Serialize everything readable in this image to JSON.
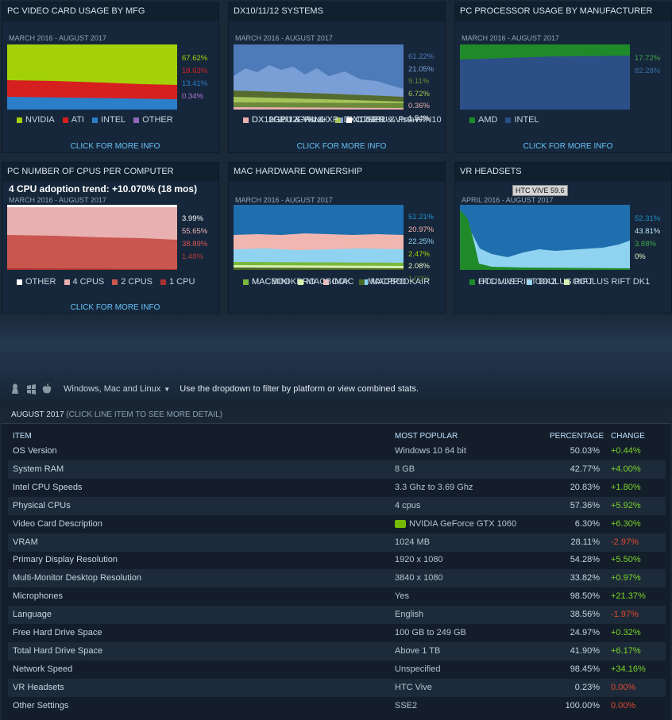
{
  "panels": [
    {
      "title": "PC VIDEO CARD USAGE BY MFG",
      "date": "MARCH 2016 - AUGUST 2017",
      "pcts": [
        {
          "v": "67.62%",
          "c": "#a4d007"
        },
        {
          "v": "18.63%",
          "c": "#d61f1f"
        },
        {
          "v": "13.41%",
          "c": "#2b7fc9"
        },
        {
          "v": "0.34%",
          "c": "#b07ad6"
        }
      ],
      "legend": [
        [
          {
            "l": "NVIDIA",
            "c": "#a4d007"
          },
          {
            "l": "ATI",
            "c": "#d61f1f"
          },
          {
            "l": "INTEL",
            "c": "#2b7fc9"
          },
          {
            "l": "OTHER",
            "c": "#8e6ab8"
          }
        ]
      ],
      "more": "CLICK FOR MORE INFO"
    },
    {
      "title": "DX10/11/12 SYSTEMS",
      "date": "MARCH 2016 - AUGUST 2017",
      "pcts": [
        {
          "v": "61.22%",
          "c": "#4d7ab8"
        },
        {
          "v": "21.05%",
          "c": "#7a9fd6"
        },
        {
          "v": "9.11%",
          "c": "#6b8a3a"
        },
        {
          "v": "6.72%",
          "c": "#a4c35a"
        },
        {
          "v": "0.36%",
          "c": "#e8b0b0"
        },
        {
          "v": "1.54%",
          "c": "#ffffff"
        }
      ],
      "legend": [
        [
          {
            "l": "DX12GPU & WIN10",
            "c": "#4d7ab8"
          },
          {
            "l": "DX12GPU & Pre-WIN10",
            "c": "#7a9fd6"
          }
        ],
        [
          {
            "l": "DX11GPU & Vista+",
            "c": "#556b2f"
          },
          {
            "l": "DX10GPU & Vista+",
            "c": "#a4c35a"
          }
        ],
        [
          {
            "l": "DX10/11/12GPU & XP",
            "c": "#e8b0b0"
          },
          {
            "l": "OTHER",
            "c": "#ffffff"
          }
        ]
      ],
      "more": "CLICK FOR MORE INFO"
    },
    {
      "title": "PC PROCESSOR USAGE BY MANUFACTURER",
      "date": "MARCH 2016 - AUGUST 2017",
      "pcts": [
        {
          "v": "17.72%",
          "c": "#3fa548"
        },
        {
          "v": "82.28%",
          "c": "#3d6ea8"
        }
      ],
      "legend": [
        [
          {
            "l": "AMD",
            "c": "#1f8a2a"
          },
          {
            "l": "INTEL",
            "c": "#2b4f86"
          }
        ]
      ],
      "more": "CLICK FOR MORE INFO"
    },
    {
      "title": "PC NUMBER OF CPUS PER COMPUTER",
      "date": "MARCH 2016 - AUGUST 2017",
      "trend": "4 CPU adoption trend: +10.070% (18 mos)",
      "pcts": [
        {
          "v": "3.99%",
          "c": "#ffffff"
        },
        {
          "v": "55.65%",
          "c": "#e8b0b0"
        },
        {
          "v": "38.89%",
          "c": "#d9534f"
        },
        {
          "v": "1.48%",
          "c": "#b83c3c"
        }
      ],
      "legend": [
        [
          {
            "l": "OTHER",
            "c": "#ffffff"
          },
          {
            "l": "4 CPUS",
            "c": "#e8b0b0"
          },
          {
            "l": "2 CPUS",
            "c": "#c9564f"
          },
          {
            "l": "1 CPU",
            "c": "#a83232"
          }
        ]
      ],
      "more": "CLICK FOR MORE INFO"
    },
    {
      "title": "MAC HARDWARE OWNERSHIP",
      "date": "MARCH 2016 - AUGUST 2017",
      "pcts": [
        {
          "v": "51.21%",
          "c": "#1f8dc9"
        },
        {
          "v": "20.97%",
          "c": "#f2b6b0"
        },
        {
          "v": "22.25%",
          "c": "#8fd3f0"
        },
        {
          "v": "2.47%",
          "c": "#a4d007"
        },
        {
          "v": "2.08%",
          "c": "#e9f5c8"
        },
        {
          "v": "1.03%",
          "c": "#4a7a24"
        }
      ],
      "legend": [
        [
          {
            "l": "MACBOOKPRO",
            "c": "#1f6fae"
          },
          {
            "l": "IMAC",
            "c": "#f2b6b0"
          },
          {
            "l": "MACBOOKAIR",
            "c": "#8fd3f0"
          }
        ],
        [
          {
            "l": "MACMINI",
            "c": "#7ab83a"
          },
          {
            "l": "MACBOOK",
            "c": "#d8f0b0"
          },
          {
            "l": "MACPRO",
            "c": "#4a6a24"
          }
        ]
      ],
      "more": ""
    },
    {
      "title": "VR HEADSETS",
      "date": "APRIL 2016 - AUGUST 2017",
      "tooltip": "HTC VIVE 59.6",
      "pcts": [
        {
          "v": "52.31%",
          "c": "#1f8dc9"
        },
        {
          "v": "43.81%",
          "c": "#bfe6f5"
        },
        {
          "v": "3.88%",
          "c": "#3fa548"
        },
        {
          "v": "0%",
          "c": "#e9f5c8"
        }
      ],
      "legend": [
        [
          {
            "l": "HTC VIVE",
            "c": "#1f6fae"
          },
          {
            "l": "OCULUS RIFT",
            "c": "#8fd3f0"
          }
        ],
        [
          {
            "l": "OCULUS RIFT DK2",
            "c": "#1f8a2a"
          },
          {
            "l": "OCULUS RIFT DK1",
            "c": "#d8f0b0"
          }
        ]
      ],
      "more": ""
    }
  ],
  "filter": {
    "platform": "Windows, Mac and Linux",
    "hint": "Use the dropdown to filter by platform or view combined stats.",
    "icons": [
      "linux-icon",
      "windows-icon",
      "apple-icon"
    ]
  },
  "table": {
    "month": "AUGUST 2017",
    "sub": "(CLICK LINE ITEM TO SEE MORE DETAIL)",
    "headers": {
      "item": "ITEM",
      "popular": "MOST POPULAR",
      "pct": "PERCENTAGE",
      "change": "CHANGE"
    },
    "rows": [
      {
        "item": "OS Version",
        "popular": "Windows 10 64 bit",
        "pct": "50.03%",
        "change": "+0.44%",
        "dir": "pos"
      },
      {
        "item": "System RAM",
        "popular": "8 GB",
        "pct": "42.77%",
        "change": "+4.00%",
        "dir": "pos"
      },
      {
        "item": "Intel CPU Speeds",
        "popular": "3.3 Ghz to 3.69 Ghz",
        "pct": "20.83%",
        "change": "+1.80%",
        "dir": "pos"
      },
      {
        "item": "Physical CPUs",
        "popular": "4 cpus",
        "pct": "57.36%",
        "change": "+5.92%",
        "dir": "pos"
      },
      {
        "item": "Video Card Description",
        "popular": "NVIDIA GeForce GTX 1060",
        "pct": "6.30%",
        "change": "+6.30%",
        "dir": "pos",
        "icon": "nvidia-icon"
      },
      {
        "item": "VRAM",
        "popular": "1024 MB",
        "pct": "28.11%",
        "change": "-2.97%",
        "dir": "neg"
      },
      {
        "item": "Primary Display Resolution",
        "popular": "1920 x 1080",
        "pct": "54.28%",
        "change": "+5.50%",
        "dir": "pos"
      },
      {
        "item": "Multi-Monitor Desktop Resolution",
        "popular": "3840 x 1080",
        "pct": "33.82%",
        "change": "+0.97%",
        "dir": "pos"
      },
      {
        "item": "Microphones",
        "popular": "Yes",
        "pct": "98.50%",
        "change": "+21.37%",
        "dir": "pos"
      },
      {
        "item": "Language",
        "popular": "English",
        "pct": "38.56%",
        "change": "-1.97%",
        "dir": "neg"
      },
      {
        "item": "Free Hard Drive Space",
        "popular": "100 GB to 249 GB",
        "pct": "24.97%",
        "change": "+0.32%",
        "dir": "pos"
      },
      {
        "item": "Total Hard Drive Space",
        "popular": "Above 1 TB",
        "pct": "41.90%",
        "change": "+6.17%",
        "dir": "pos"
      },
      {
        "item": "Network Speed",
        "popular": "Unspecified",
        "pct": "98.45%",
        "change": "+34.16%",
        "dir": "pos"
      },
      {
        "item": "VR Headsets",
        "popular": "HTC Vive",
        "pct": "0.23%",
        "change": "0.00%",
        "dir": "neg"
      },
      {
        "item": "Other Settings",
        "popular": "SSE2",
        "pct": "100.00%",
        "change": "0.00%",
        "dir": "neg"
      }
    ]
  }
}
